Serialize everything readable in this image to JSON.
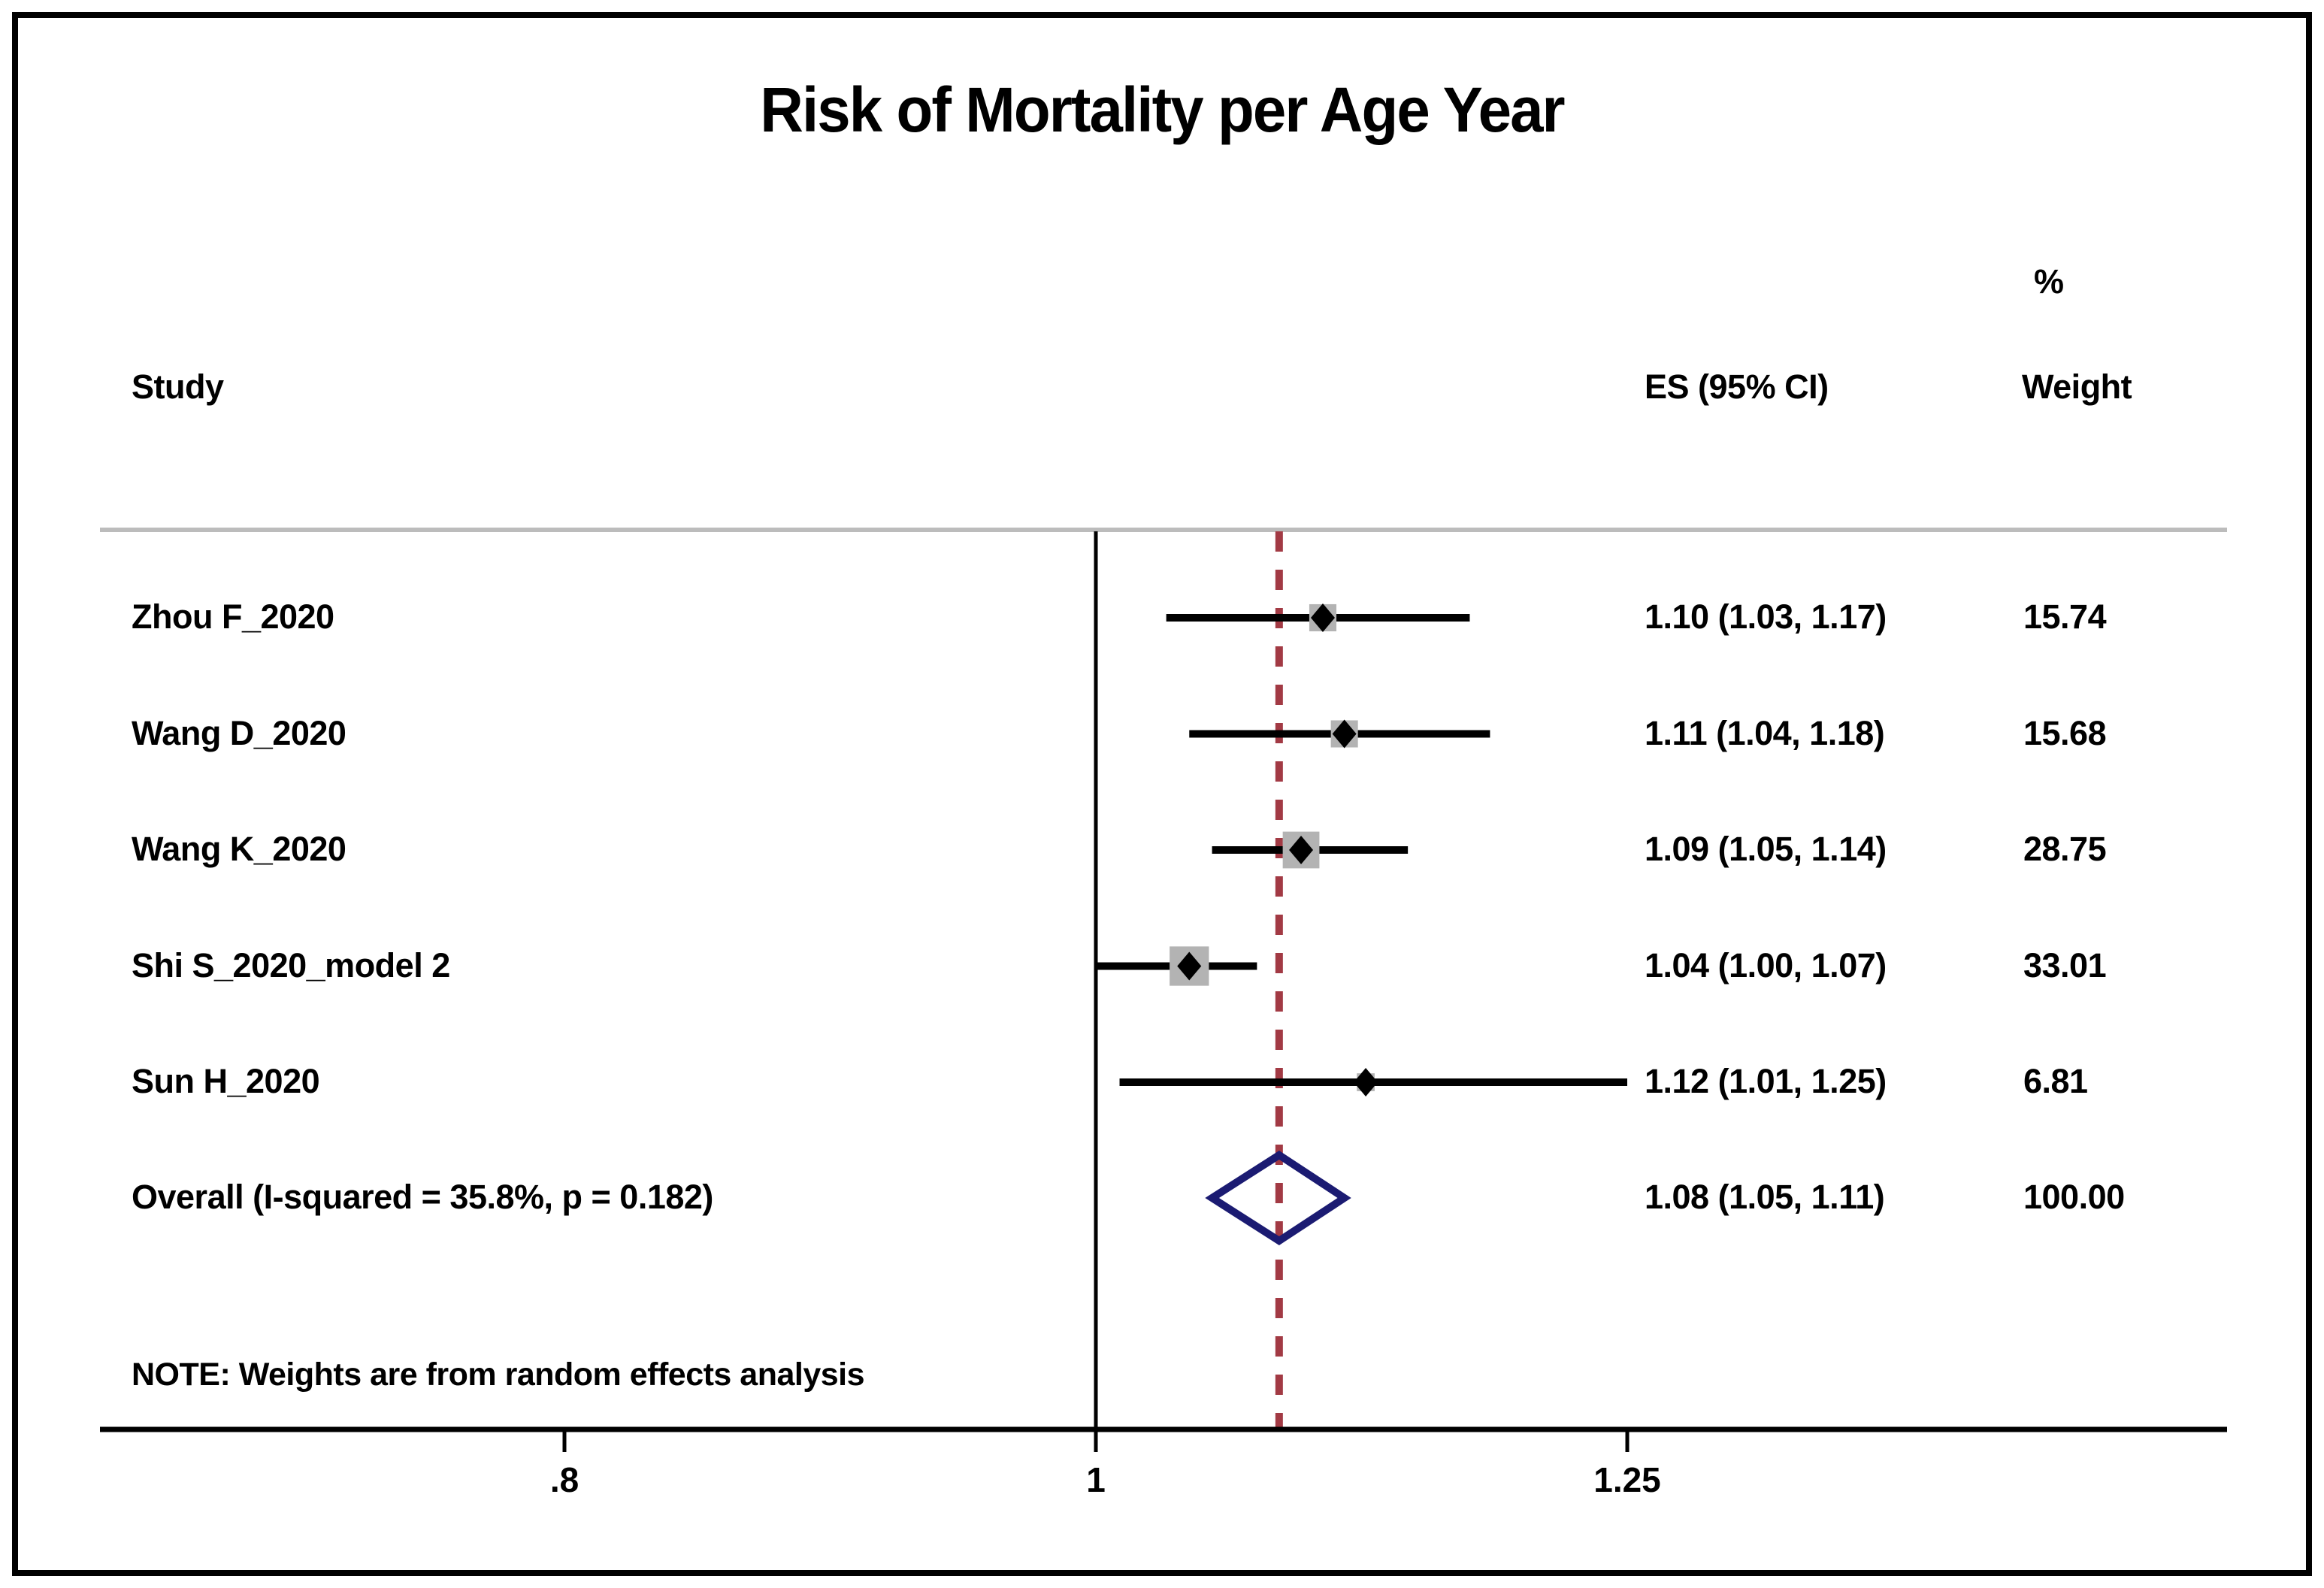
{
  "title": "Risk of Mortality per Age Year",
  "columns": {
    "study": "Study",
    "es": "ES (95% CI)",
    "pct": "%",
    "weight": "Weight"
  },
  "note": "NOTE: Weights are from random effects analysis",
  "chart_data": {
    "type": "forest",
    "title": "Risk of Mortality per Age Year",
    "x_axis": {
      "scale": "log",
      "tick_labels": [
        ".8",
        "1",
        "1.25"
      ],
      "tick_values": [
        0.8,
        1,
        1.25
      ]
    },
    "null_line_value": 1,
    "overall_dashed_line_value": 1.08,
    "studies": [
      {
        "label": "Zhou F_2020",
        "es": 1.1,
        "ci_low": 1.03,
        "ci_high": 1.17,
        "es_ci_text": "1.10 (1.03, 1.17)",
        "weight": 15.74,
        "weight_text": "15.74"
      },
      {
        "label": "Wang D_2020",
        "es": 1.11,
        "ci_low": 1.04,
        "ci_high": 1.18,
        "es_ci_text": "1.11 (1.04, 1.18)",
        "weight": 15.68,
        "weight_text": "15.68"
      },
      {
        "label": "Wang K_2020",
        "es": 1.09,
        "ci_low": 1.05,
        "ci_high": 1.14,
        "es_ci_text": "1.09 (1.05, 1.14)",
        "weight": 28.75,
        "weight_text": "28.75"
      },
      {
        "label": "Shi S_2020_model 2",
        "es": 1.04,
        "ci_low": 1.0,
        "ci_high": 1.07,
        "es_ci_text": "1.04 (1.00, 1.07)",
        "weight": 33.01,
        "weight_text": "33.01"
      },
      {
        "label": "Sun H_2020",
        "es": 1.12,
        "ci_low": 1.01,
        "ci_high": 1.25,
        "es_ci_text": "1.12 (1.01, 1.25)",
        "weight": 6.81,
        "weight_text": "6.81"
      }
    ],
    "overall": {
      "label": "Overall  (I-squared = 35.8%, p = 0.182)",
      "es": 1.08,
      "ci_low": 1.05,
      "ci_high": 1.11,
      "es_ci_text": "1.08 (1.05, 1.11)",
      "weight": 100.0,
      "weight_text": "100.00"
    },
    "note": "NOTE: Weights are from random effects analysis",
    "legend": "none",
    "grid": "off"
  },
  "colors": {
    "dashed_line": "#a23a44",
    "diamond": "#1b1b72",
    "square": "#b3b3b3",
    "separator": "#bcbcbc",
    "line": "#000000",
    "border": "#000000",
    "background": "#ffffff"
  }
}
